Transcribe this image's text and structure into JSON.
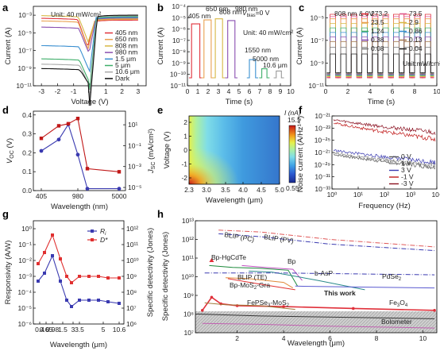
{
  "figure": {
    "panels": {
      "a": {
        "label": "a",
        "note": "Unit: 40 mW/cm²"
      },
      "b": {
        "label": "b",
        "note": "Unit: 40 mW/cm²",
        "bias": "V",
        "bias_sub": "bias",
        "bias_val": "=0 V"
      },
      "c": {
        "label": "c",
        "note": "808 nm & 0V",
        "unit": "Unit:mW/cm²"
      },
      "d": {
        "label": "d"
      },
      "e": {
        "label": "e"
      },
      "f": {
        "label": "f"
      },
      "g": {
        "label": "g"
      },
      "h": {
        "label": "h"
      }
    }
  },
  "chart_data": [
    {
      "id": "a",
      "type": "line",
      "xlabel": "Voltage (V)",
      "ylabel": "Current (A)",
      "xlim": [
        -3.5,
        3.5
      ],
      "ylim_log10": [
        -11,
        -2
      ],
      "x_ticks": [
        "-3",
        "-2",
        "-1",
        "0",
        "1",
        "2",
        "3"
      ],
      "y_ticks": [
        "10⁻¹¹",
        "10⁻⁹",
        "10⁻⁷",
        "10⁻⁵",
        "10⁻³"
      ],
      "annotation": "Unit: 40 mW/cm²",
      "series": [
        {
          "name": "405 nm",
          "color": "#e0303a",
          "floor_log10": -3.6
        },
        {
          "name": "650 nm",
          "color": "#e9a050",
          "floor_log10": -3.9
        },
        {
          "name": "808 nm",
          "color": "#d7b844",
          "floor_log10": -3.3
        },
        {
          "name": "980 nm",
          "color": "#8a4fb0",
          "floor_log10": -4.6
        },
        {
          "name": "1.5 μm",
          "color": "#3a8fd0",
          "floor_log10": -6.7
        },
        {
          "name": "5 μm",
          "color": "#3fae6a",
          "floor_log10": -8.2
        },
        {
          "name": "10.6 μm",
          "color": "#a8a8a8",
          "floor_log10": -8.8
        },
        {
          "name": "Dark",
          "color": "#111111",
          "floor_log10": -9.3
        }
      ]
    },
    {
      "id": "b",
      "type": "line",
      "xlabel": "Time (s)",
      "ylabel": "Current (A)",
      "xlim": [
        0,
        10
      ],
      "ylim_log10": [
        -11,
        -4
      ],
      "x_ticks": [
        "0",
        "1",
        "2",
        "3",
        "4",
        "5",
        "6",
        "7",
        "8",
        "9",
        "10"
      ],
      "y_ticks": [
        "10⁻¹¹",
        "10⁻¹⁰",
        "10⁻⁹",
        "10⁻⁸",
        "10⁻⁷",
        "10⁻⁶",
        "10⁻⁵",
        "10⁻⁴"
      ],
      "dark_level_log10": -10.3,
      "series": [
        {
          "name": "405 nm",
          "color": "#e0303a",
          "on_log10": -5.55,
          "on_time": [
            0.4,
            1.2
          ]
        },
        {
          "name": "650 nm",
          "color": "#e9a050",
          "on_log10": -5.2,
          "on_time": [
            1.6,
            2.3
          ]
        },
        {
          "name": "808 nm",
          "color": "#d7b844",
          "on_log10": -5.1,
          "on_time": [
            2.7,
            3.4
          ]
        },
        {
          "name": "980 nm",
          "color": "#8a4fb0",
          "on_log10": -5.25,
          "on_time": [
            3.9,
            4.6
          ]
        },
        {
          "name": "1550 nm",
          "color": "#3a8fd0",
          "on_log10": -8.7,
          "on_time": [
            6.0,
            6.6
          ]
        },
        {
          "name": "5000 nm",
          "color": "#3fae6a",
          "on_log10": -9.5,
          "on_time": [
            7.2,
            7.7
          ]
        },
        {
          "name": "10.6 μm",
          "color": "#999999",
          "on_log10": -9.7,
          "on_time": [
            8.6,
            9.1
          ]
        }
      ]
    },
    {
      "id": "c",
      "type": "line",
      "xlabel": "Time (s)",
      "ylabel": "Current (A)",
      "xlim": [
        0,
        10
      ],
      "ylim_log10": [
        -11,
        -4
      ],
      "x_ticks": [
        "0",
        "2",
        "4",
        "6",
        "8",
        "10"
      ],
      "y_ticks": [
        "10⁻¹¹",
        "10⁻⁹",
        "10⁻⁷",
        "10⁻⁵"
      ],
      "legend_values": [
        "273.2",
        "73.5",
        "23.5",
        "2.9",
        "1.24",
        "0.86",
        "0.38",
        "0.13",
        "0.08",
        "0.04"
      ],
      "legend_colors": [
        "#e0303a",
        "#e0548b",
        "#e9a050",
        "#d7b844",
        "#3fae6a",
        "#3a8fd0",
        "#8a4fb0",
        "#a67c52",
        "#777777",
        "#222222"
      ],
      "on_log10": [
        -4.7,
        -4.9,
        -5.1,
        -5.5,
        -5.9,
        -6.3,
        -6.7,
        -7.1,
        -7.6,
        -8.2
      ],
      "dark_level_log10": -10.3
    },
    {
      "id": "d",
      "type": "line",
      "xlabel": "Wavelength (nm)",
      "ylabel_left": "V",
      "ylabel_left_sub": "OC",
      "ylabel_left_unit": " (V)",
      "ylabel_right": "J",
      "ylabel_right_sub": "SC",
      "ylabel_right_unit": " (mA/cm²)",
      "x_ticks": [
        "405",
        "980",
        "5000"
      ],
      "y_left_ticks": [
        "0.0",
        "0.1",
        "0.2",
        "0.3",
        "0.4"
      ],
      "y_right_ticks": [
        "10⁻⁵",
        "10⁻³",
        "10⁻¹",
        "10¹"
      ],
      "x": [
        405,
        650,
        808,
        980,
        1550,
        5000
      ],
      "series": [
        {
          "axis": "left",
          "color": "#3a3ab0",
          "values": [
            0.21,
            0.27,
            0.35,
            0.19,
            0.01,
            0.01
          ]
        },
        {
          "axis": "right",
          "color": "#c01818",
          "values_log10": [
            -0.3,
            0.9,
            1.1,
            1.6,
            -3.2,
            -3.5
          ]
        }
      ]
    },
    {
      "id": "e",
      "type": "heatmap",
      "xlabel": "Wavelength (μm)",
      "ylabel": "Voltage (V)",
      "x_ticks": [
        "2.3",
        "3.0",
        "3.5",
        "4.0",
        "4.5",
        "5.0"
      ],
      "y_ticks": [
        "-2",
        "-1",
        "0",
        "1",
        "2"
      ],
      "colorbar_label": "I (nA)",
      "colorbar_max": "15.1",
      "colorbar_min": "0.55"
    },
    {
      "id": "f",
      "type": "line",
      "xlabel": "Frequency (Hz)",
      "ylabel": "Noise current (A/Hz¹ᐟ²)",
      "x_ticks": [
        "10⁰",
        "10¹",
        "10²",
        "10³",
        "10⁴"
      ],
      "y_ticks": [
        "10⁻²¹",
        "10⁻²³",
        "10⁻²⁵",
        "10⁻²⁷",
        "10⁻²⁹",
        "10⁻³¹",
        "10⁻³³"
      ],
      "series": [
        {
          "name": "0 V",
          "color": "#555555",
          "start_log10": -27.3,
          "end_log10": -29.4
        },
        {
          "name": "1 V",
          "color": "#8a8a8a",
          "start_log10": -27.0,
          "end_log10": -29.2
        },
        {
          "name": "3 V",
          "color": "#3a3ab0",
          "start_log10": -26.6,
          "end_log10": -28.6
        },
        {
          "name": "-1 V",
          "color": "#c01818",
          "start_log10": -22.1,
          "end_log10": -24.8
        },
        {
          "name": "-3 V",
          "color": "#8a1020",
          "start_log10": -21.6,
          "end_log10": -23.7
        }
      ]
    },
    {
      "id": "g",
      "type": "line",
      "xlabel": "Wavelength (μm)",
      "ylabel_left": "Responsivity (A/W)",
      "ylabel_right": "Specific detectivity (Jones)",
      "x_ticks": [
        "0.4",
        "0.65",
        "0.98",
        "1.5",
        "3",
        "3.5",
        "5",
        "10.6"
      ],
      "y_left_ticks": [
        "10⁻⁶",
        "10⁻⁵",
        "10⁻⁴",
        "10⁻³",
        "10⁻²",
        "10⁻¹",
        "10⁰"
      ],
      "y_right_ticks": [
        "10⁶",
        "10⁷",
        "10⁸",
        "10⁹",
        "10¹⁰",
        "10¹¹",
        "10¹²"
      ],
      "legend": [
        "R",
        "D*"
      ],
      "legend_sub": [
        "i",
        ""
      ],
      "series": [
        {
          "name": "Rᵢ",
          "axis": "left",
          "color": "#3a3ab0",
          "values_log10": [
            -3.3,
            -2.8,
            -1.7,
            -3.3,
            -4.5,
            -4.9,
            -4.5,
            -4.5,
            -4.5,
            -4.6,
            -4.7
          ]
        },
        {
          "name": "D*",
          "axis": "right",
          "color": "#e03030",
          "values_log10": [
            9.8,
            10.5,
            11.6,
            10.1,
            9.0,
            8.6,
            9.0,
            9.0,
            9.0,
            8.9,
            8.9
          ]
        }
      ]
    },
    {
      "id": "h",
      "type": "line",
      "xlabel": "Wavelength (μm)",
      "ylabel": "Specific detectivity (Jones)",
      "x_ticks": [
        "2",
        "4",
        "6",
        "8",
        "10"
      ],
      "y_ticks": [
        "10⁷",
        "10⁸",
        "10⁹",
        "10¹⁰",
        "10¹¹",
        "10¹²",
        "10¹³"
      ],
      "labels": [
        "BLIP (PV)",
        "BLIP (PC)",
        "Bp-HgCdTe",
        "Bp",
        "b-AsP",
        "PdSe",
        "BLIP (TE)",
        "Bp-MoS",
        "-Gra",
        "This work",
        "FePSe",
        "-MoS",
        "Fe",
        "O",
        "Bolometer"
      ],
      "label_subs": [
        "2",
        "2",
        "3",
        "2",
        "3",
        "4"
      ]
    }
  ]
}
